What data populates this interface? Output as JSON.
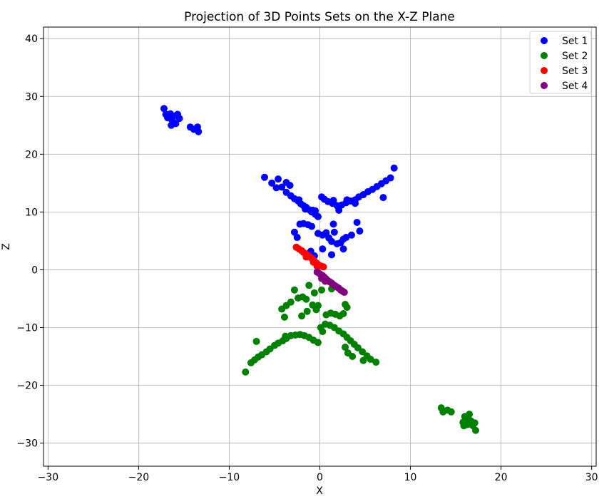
{
  "chart_data": {
    "type": "scatter",
    "title": "Projection of 3D Points Sets on the X-Z Plane",
    "xlabel": "X",
    "ylabel": "Z",
    "xlim": [
      -30.5,
      30.5
    ],
    "ylim": [
      -34,
      42
    ],
    "xticks": [
      -30,
      -20,
      -10,
      0,
      10,
      20,
      30
    ],
    "yticks": [
      -30,
      -20,
      -10,
      0,
      10,
      20,
      30,
      40
    ],
    "xtick_labels": [
      "−30",
      "−20",
      "−10",
      "0",
      "10",
      "20",
      "30"
    ],
    "ytick_labels": [
      "−30",
      "−20",
      "−10",
      "0",
      "10",
      "20",
      "30",
      "40"
    ],
    "grid": true,
    "legend_position": "top-right",
    "series": [
      {
        "name": "Set 1",
        "color": "#0000ff",
        "points": [
          [
            -17.2,
            27.9
          ],
          [
            -17.0,
            26.9
          ],
          [
            -16.8,
            26.3
          ],
          [
            -16.5,
            27.0
          ],
          [
            -16.3,
            25.9
          ],
          [
            -16.1,
            26.6
          ],
          [
            -15.9,
            25.3
          ],
          [
            -15.7,
            26.9
          ],
          [
            -15.5,
            26.2
          ],
          [
            -16.4,
            25.0
          ],
          [
            -14.3,
            24.7
          ],
          [
            -13.9,
            24.3
          ],
          [
            -13.5,
            24.7
          ],
          [
            -13.4,
            23.9
          ],
          [
            -6.1,
            16.0
          ],
          [
            -5.3,
            15.0
          ],
          [
            -4.6,
            15.7
          ],
          [
            -4.8,
            14.2
          ],
          [
            -4.2,
            14.3
          ],
          [
            -3.7,
            15.1
          ],
          [
            -3.3,
            14.6
          ],
          [
            -3.7,
            13.4
          ],
          [
            -3.2,
            12.8
          ],
          [
            -2.8,
            12.3
          ],
          [
            -2.4,
            11.9
          ],
          [
            -2.1,
            11.4
          ],
          [
            -1.8,
            11.1
          ],
          [
            -1.5,
            10.8
          ],
          [
            -1.2,
            10.4
          ],
          [
            -0.9,
            10.0
          ],
          [
            -0.5,
            9.6
          ],
          [
            -0.2,
            9.2
          ],
          [
            -2.3,
            12.1
          ],
          [
            -1.6,
            10.5
          ],
          [
            -0.8,
            10.3
          ],
          [
            0.2,
            12.6
          ],
          [
            0.5,
            12.2
          ],
          [
            0.9,
            11.8
          ],
          [
            1.4,
            11.5
          ],
          [
            1.9,
            11.1
          ],
          [
            2.4,
            11.2
          ],
          [
            2.9,
            11.6
          ],
          [
            3.4,
            11.9
          ],
          [
            3.9,
            12.1
          ],
          [
            4.3,
            12.6
          ],
          [
            4.8,
            13.0
          ],
          [
            5.3,
            13.5
          ],
          [
            5.8,
            13.9
          ],
          [
            6.3,
            14.4
          ],
          [
            6.8,
            14.9
          ],
          [
            7.3,
            15.4
          ],
          [
            7.8,
            15.9
          ],
          [
            8.2,
            17.6
          ],
          [
            7.0,
            12.5
          ],
          [
            1.5,
            12.0
          ],
          [
            2.1,
            10.3
          ],
          [
            3.0,
            12.1
          ],
          [
            3.9,
            11.5
          ],
          [
            -2.8,
            6.5
          ],
          [
            -2.5,
            5.6
          ],
          [
            -2.2,
            7.9
          ],
          [
            -1.8,
            8.0
          ],
          [
            -1.3,
            7.8
          ],
          [
            -0.9,
            7.5
          ],
          [
            -0.5,
            10.2
          ],
          [
            -0.2,
            6.3
          ],
          [
            0.3,
            6.0
          ],
          [
            0.7,
            6.4
          ],
          [
            1.0,
            5.5
          ],
          [
            1.3,
            4.9
          ],
          [
            1.6,
            6.5
          ],
          [
            1.9,
            4.5
          ],
          [
            2.3,
            4.7
          ],
          [
            2.6,
            5.3
          ],
          [
            2.9,
            5.6
          ],
          [
            3.5,
            6.0
          ],
          [
            4.1,
            8.2
          ],
          [
            4.4,
            6.7
          ],
          [
            1.3,
            2.6
          ],
          [
            2.6,
            3.6
          ],
          [
            0.3,
            3.6
          ],
          [
            -1.0,
            3.2
          ],
          [
            -0.6,
            2.4
          ],
          [
            1.5,
            7.9
          ]
        ]
      },
      {
        "name": "Set 2",
        "color": "#008000",
        "points": [
          [
            -8.2,
            -17.7
          ],
          [
            -7.6,
            -16.1
          ],
          [
            -7.2,
            -15.6
          ],
          [
            -6.8,
            -15.1
          ],
          [
            -6.4,
            -14.7
          ],
          [
            -5.9,
            -14.2
          ],
          [
            -5.5,
            -13.7
          ],
          [
            -5.0,
            -13.1
          ],
          [
            -4.6,
            -12.7
          ],
          [
            -4.1,
            -12.3
          ],
          [
            -3.7,
            -11.9
          ],
          [
            -3.2,
            -11.4
          ],
          [
            -2.7,
            -11.3
          ],
          [
            -2.2,
            -11.2
          ],
          [
            -1.7,
            -11.4
          ],
          [
            -1.2,
            -11.7
          ],
          [
            -0.7,
            -12.2
          ],
          [
            -0.2,
            -12.6
          ],
          [
            -3.8,
            -11.5
          ],
          [
            -7.0,
            -12.4
          ],
          [
            0.1,
            -10.0
          ],
          [
            0.6,
            -9.4
          ],
          [
            1.1,
            -9.6
          ],
          [
            1.6,
            -10.0
          ],
          [
            2.1,
            -10.6
          ],
          [
            2.6,
            -11.1
          ],
          [
            3.0,
            -11.7
          ],
          [
            3.4,
            -12.3
          ],
          [
            3.8,
            -12.9
          ],
          [
            4.2,
            -13.5
          ],
          [
            4.7,
            -14.2
          ],
          [
            5.2,
            -14.9
          ],
          [
            5.6,
            -15.5
          ],
          [
            6.2,
            -16.0
          ],
          [
            3.6,
            -15.0
          ],
          [
            4.8,
            -15.7
          ],
          [
            2.8,
            -13.4
          ],
          [
            3.1,
            -14.4
          ],
          [
            -4.2,
            -6.8
          ],
          [
            -3.7,
            -6.2
          ],
          [
            -3.2,
            -5.6
          ],
          [
            -2.8,
            -3.5
          ],
          [
            -2.4,
            -4.9
          ],
          [
            -1.9,
            -4.7
          ],
          [
            -1.5,
            -5.1
          ],
          [
            -1.2,
            -2.7
          ],
          [
            -0.8,
            -6.1
          ],
          [
            -0.4,
            -6.9
          ],
          [
            -1.4,
            -7.2
          ],
          [
            -2.0,
            -8.0
          ],
          [
            -3.9,
            -8.2
          ],
          [
            0.2,
            -3.5
          ],
          [
            -0.6,
            -4.0
          ],
          [
            0.7,
            -7.8
          ],
          [
            1.2,
            -7.5
          ],
          [
            1.7,
            -7.7
          ],
          [
            2.2,
            -8.0
          ],
          [
            2.6,
            -7.6
          ],
          [
            2.8,
            -6.0
          ],
          [
            3.0,
            -6.5
          ],
          [
            1.3,
            -3.3
          ],
          [
            -0.2,
            -6.2
          ],
          [
            0.3,
            -10.7
          ],
          [
            13.4,
            -23.9
          ],
          [
            13.6,
            -24.6
          ],
          [
            14.1,
            -24.3
          ],
          [
            14.5,
            -24.6
          ],
          [
            15.8,
            -26.4
          ],
          [
            16.0,
            -25.4
          ],
          [
            16.3,
            -26.8
          ],
          [
            16.5,
            -25.0
          ],
          [
            16.7,
            -26.2
          ],
          [
            16.9,
            -27.0
          ],
          [
            17.1,
            -26.5
          ],
          [
            17.2,
            -27.8
          ],
          [
            15.9,
            -27.0
          ],
          [
            16.4,
            -25.8
          ]
        ]
      },
      {
        "name": "Set 3",
        "color": "#ff0000",
        "points": [
          [
            -2.6,
            3.9
          ],
          [
            -2.3,
            3.6
          ],
          [
            -2.0,
            3.3
          ],
          [
            -1.8,
            3.0
          ],
          [
            -1.6,
            2.8
          ],
          [
            -1.4,
            2.6
          ],
          [
            -1.2,
            2.3
          ],
          [
            -1.0,
            2.1
          ],
          [
            -0.8,
            1.8
          ],
          [
            -0.6,
            1.5
          ],
          [
            -0.4,
            1.2
          ],
          [
            -0.2,
            0.9
          ],
          [
            0.0,
            0.7
          ],
          [
            0.2,
            0.6
          ],
          [
            0.4,
            0.5
          ],
          [
            -0.3,
            0.6
          ],
          [
            -0.7,
            1.3
          ],
          [
            -1.5,
            2.2
          ]
        ]
      },
      {
        "name": "Set 4",
        "color": "#800080",
        "points": [
          [
            -0.3,
            -0.4
          ],
          [
            0.0,
            -0.7
          ],
          [
            0.3,
            -1.0
          ],
          [
            0.5,
            -1.3
          ],
          [
            0.7,
            -1.6
          ],
          [
            0.9,
            -1.9
          ],
          [
            1.1,
            -2.1
          ],
          [
            1.3,
            -2.3
          ],
          [
            1.5,
            -2.6
          ],
          [
            1.7,
            -2.8
          ],
          [
            1.9,
            -3.0
          ],
          [
            2.1,
            -3.2
          ],
          [
            2.3,
            -3.5
          ],
          [
            2.5,
            -3.7
          ],
          [
            2.7,
            -3.9
          ],
          [
            0.2,
            -1.5
          ],
          [
            0.6,
            -2.0
          ]
        ]
      }
    ]
  }
}
